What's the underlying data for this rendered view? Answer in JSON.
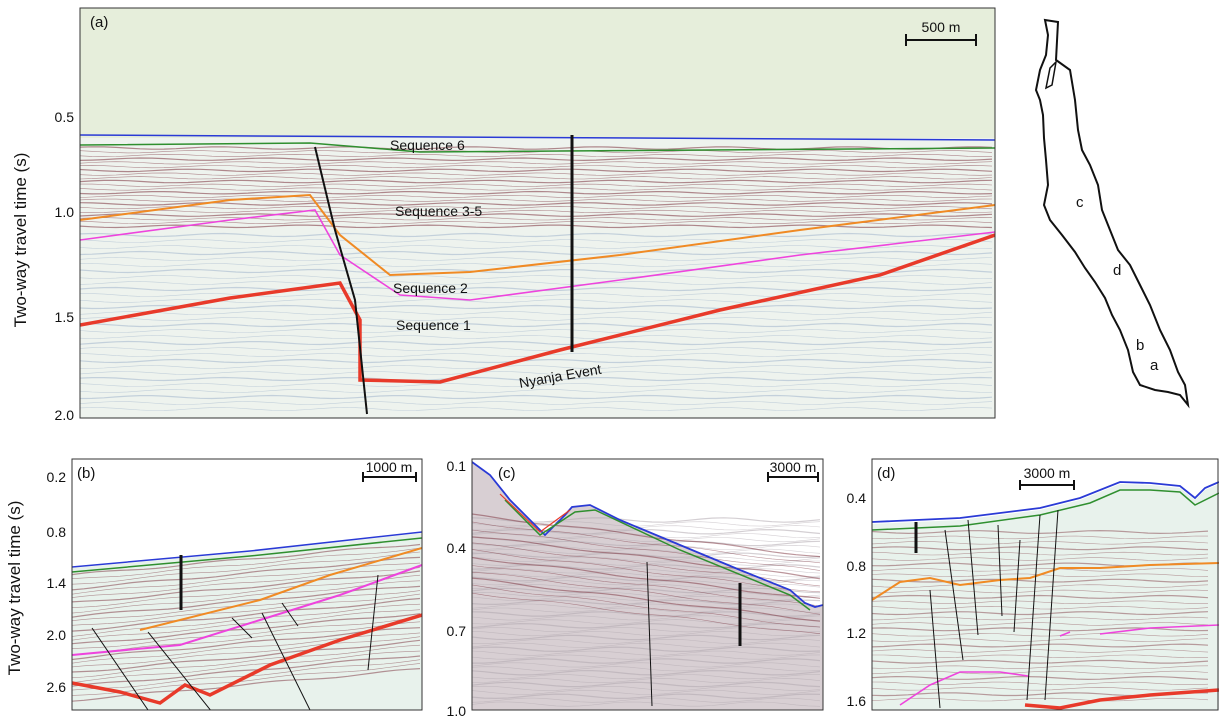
{
  "colors": {
    "water": "#e6eedb",
    "seafloor": "#2a3ad6",
    "green_horizon": "#2f8f2f",
    "orange_horizon": "#f08a24",
    "magenta_horizon": "#ee44dd",
    "red_horizon": "#e83a2a",
    "fault": "#111111",
    "strata": "#7a2e3a",
    "noise": "#b1a8ae"
  },
  "y_axis_label": "Two-way travel time (s)",
  "panels": {
    "a": {
      "label": "(a)",
      "scalebar": "500 m",
      "ticks": [
        "0.5",
        "1.0",
        "1.5",
        "2.0"
      ],
      "sequences": [
        "Sequence 6",
        "Sequence 3-5",
        "Sequence 2",
        "Sequence 1"
      ],
      "event": "Nyanja Event"
    },
    "b": {
      "label": "(b)",
      "scalebar": "1000 m",
      "ticks": [
        "0.2",
        "0.8",
        "1.4",
        "2.0",
        "2.6"
      ]
    },
    "c": {
      "label": "(c)",
      "scalebar": "3000 m",
      "ticks": [
        "0.1",
        "0.4",
        "0.7",
        "1.0"
      ]
    },
    "d": {
      "label": "(d)",
      "scalebar": "3000 m",
      "ticks": [
        "0.4",
        "0.8",
        "1.2",
        "1.6"
      ]
    }
  },
  "map": {
    "labels": [
      "c",
      "d",
      "b",
      "a"
    ]
  }
}
